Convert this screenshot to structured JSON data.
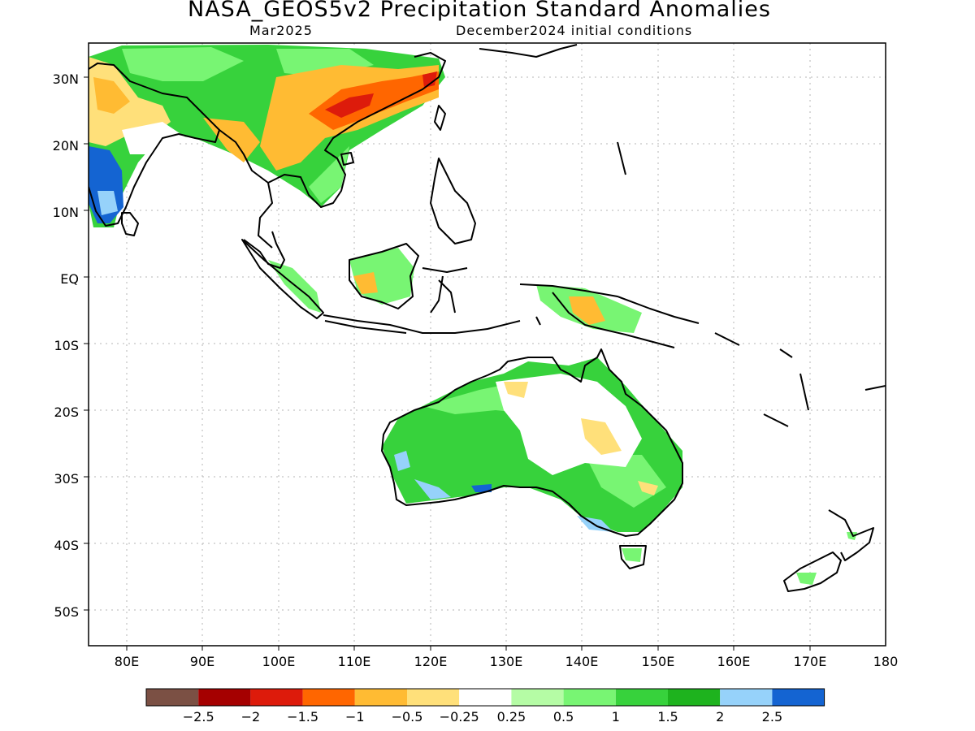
{
  "title": "NASA_GEOS5v2 Precipitation Standard Anomalies",
  "subtitle_left": "Mar2025",
  "subtitle_right": "December2024 initial conditions",
  "lat_labels": [
    "30N",
    "20N",
    "10N",
    "EQ",
    "10S",
    "20S",
    "30S",
    "40S",
    "50S"
  ],
  "lon_labels": [
    "80E",
    "90E",
    "100E",
    "110E",
    "120E",
    "130E",
    "140E",
    "150E",
    "160E",
    "170E",
    "180"
  ],
  "colorbar": {
    "colors": [
      "#7b5044",
      "#a50000",
      "#dd1b0b",
      "#ff6600",
      "#ffbb33",
      "#ffe07a",
      "#ffffff",
      "#b5fca5",
      "#78f573",
      "#37d23c",
      "#1eb31e",
      "#96d2fa",
      "#1464d2"
    ],
    "labels": [
      "−2.5",
      "−2",
      "−1.5",
      "−1",
      "−0.5",
      "−0.25",
      "0.25",
      "0.5",
      "1",
      "1.5",
      "2",
      "2.5"
    ]
  }
}
